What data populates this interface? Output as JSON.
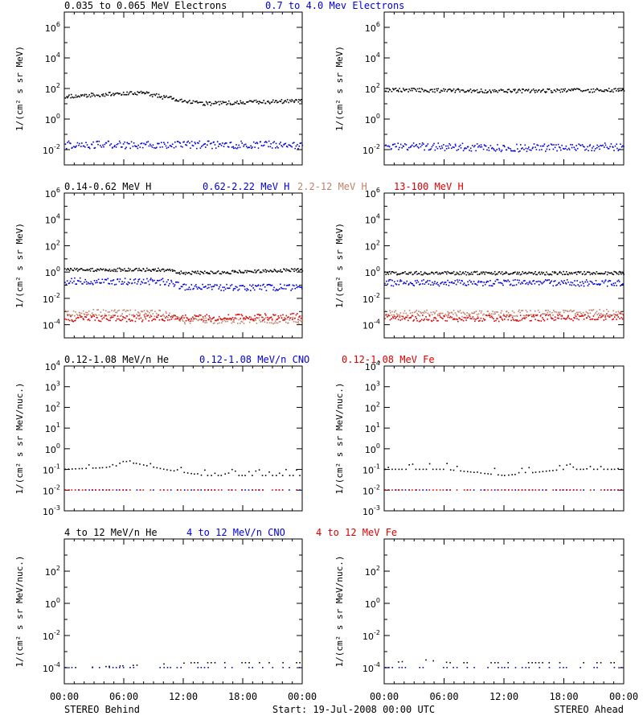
{
  "footer": {
    "left": "STEREO Behind",
    "center": "Start: 19-Jul-2008 00:00 UTC",
    "right": "STEREO Ahead"
  },
  "x_ticks": [
    "00:00",
    "06:00",
    "12:00",
    "18:00",
    "00:00"
  ],
  "colors": {
    "black": "#000000",
    "blue": "#0000dd",
    "tan": "#c0806a",
    "red": "#dd0000"
  },
  "chart_data": [
    {
      "type": "scatter",
      "row": 0,
      "titles": [
        {
          "text": "0.035 to 0.065 MeV Electrons",
          "color": "#000000"
        },
        {
          "text": "0.7 to 4.0 Mev Electrons",
          "color": "#0000dd"
        }
      ],
      "ylabel": "1/(cm² s sr MeV)",
      "yscale": "log",
      "ylim_exp": [
        -3,
        7
      ],
      "ytick_exps": [
        -2,
        0,
        2,
        4,
        6
      ],
      "xlim_hours": [
        0,
        24
      ],
      "panels": [
        {
          "name": "STEREO Behind",
          "series": [
            {
              "color": "black",
              "points": [
                [
                  0,
                  30
                ],
                [
                  4,
                  40
                ],
                [
                  8,
                  50
                ],
                [
                  10,
                  25
                ],
                [
                  12,
                  15
                ],
                [
                  14,
                  10
                ],
                [
                  18,
                  12
                ],
                [
                  24,
                  15
                ]
              ]
            },
            {
              "color": "blue",
              "points": [
                [
                  0,
                  0.02
                ],
                [
                  6,
                  0.02
                ],
                [
                  12,
                  0.02
                ],
                [
                  18,
                  0.02
                ],
                [
                  24,
                  0.02
                ]
              ]
            }
          ]
        },
        {
          "name": "STEREO Ahead",
          "series": [
            {
              "color": "black",
              "points": [
                [
                  0,
                  80
                ],
                [
                  6,
                  70
                ],
                [
                  12,
                  65
                ],
                [
                  18,
                  70
                ],
                [
                  24,
                  75
                ]
              ]
            },
            {
              "color": "blue",
              "points": [
                [
                  0,
                  0.015
                ],
                [
                  6,
                  0.015
                ],
                [
                  12,
                  0.012
                ],
                [
                  18,
                  0.014
                ],
                [
                  24,
                  0.015
                ]
              ]
            }
          ]
        }
      ]
    },
    {
      "type": "scatter",
      "row": 1,
      "titles": [
        {
          "text": "0.14-0.62 MeV H",
          "color": "#000000"
        },
        {
          "text": "0.62-2.22 MeV H",
          "color": "#0000dd"
        },
        {
          "text": "2.2-12 MeV H",
          "color": "#c0806a"
        },
        {
          "text": "13-100 MeV H",
          "color": "#dd0000"
        }
      ],
      "ylabel": "1/(cm² s sr MeV)",
      "yscale": "log",
      "ylim_exp": [
        -5,
        6
      ],
      "ytick_exps": [
        -4,
        -2,
        0,
        2,
        4,
        6
      ],
      "xlim_hours": [
        0,
        24
      ],
      "panels": [
        {
          "name": "STEREO Behind",
          "series": [
            {
              "color": "black",
              "points": [
                [
                  0,
                  1.5
                ],
                [
                  10,
                  1.4
                ],
                [
                  12,
                  0.8
                ],
                [
                  18,
                  1.0
                ],
                [
                  24,
                  1.5
                ]
              ]
            },
            {
              "color": "blue",
              "points": [
                [
                  0,
                  0.2
                ],
                [
                  10,
                  0.18
                ],
                [
                  12,
                  0.07
                ],
                [
                  18,
                  0.06
                ],
                [
                  24,
                  0.07
                ]
              ]
            },
            {
              "color": "tan",
              "points": [
                [
                  0,
                  0.0008
                ],
                [
                  10,
                  0.0007
                ],
                [
                  12,
                  0.0002
                ],
                [
                  24,
                  0.0002
                ]
              ]
            },
            {
              "color": "red",
              "points": [
                [
                  0,
                  0.0003
                ],
                [
                  10,
                  0.0003
                ],
                [
                  12,
                  0.0003
                ],
                [
                  24,
                  0.0004
                ]
              ]
            }
          ]
        },
        {
          "name": "STEREO Ahead",
          "series": [
            {
              "color": "black",
              "points": [
                [
                  0,
                  0.8
                ],
                [
                  12,
                  0.8
                ],
                [
                  24,
                  0.8
                ]
              ]
            },
            {
              "color": "blue",
              "points": [
                [
                  0,
                  0.15
                ],
                [
                  12,
                  0.15
                ],
                [
                  24,
                  0.14
                ]
              ]
            },
            {
              "color": "tan",
              "points": [
                [
                  0,
                  0.0007
                ],
                [
                  12,
                  0.0007
                ],
                [
                  24,
                  0.0008
                ]
              ]
            },
            {
              "color": "red",
              "points": [
                [
                  0,
                  0.0003
                ],
                [
                  12,
                  0.0003
                ],
                [
                  24,
                  0.0004
                ]
              ]
            }
          ]
        }
      ]
    },
    {
      "type": "scatter",
      "row": 2,
      "titles": [
        {
          "text": "0.12-1.08 MeV/n He",
          "color": "#000000"
        },
        {
          "text": "0.12-1.08 MeV/n CNO",
          "color": "#0000dd"
        },
        {
          "text": "0.12-1.08 MeV Fe",
          "color": "#dd0000"
        }
      ],
      "ylabel": "1/(cm² s sr MeV/nuc.)",
      "yscale": "log",
      "ylim_exp": [
        -3,
        4
      ],
      "ytick_exps": [
        -3,
        -2,
        -1,
        0,
        1,
        2,
        3,
        4
      ],
      "xlim_hours": [
        0,
        24
      ],
      "panels": [
        {
          "name": "STEREO Behind",
          "series": [
            {
              "color": "black",
              "points": [
                [
                  0,
                  0.1
                ],
                [
                  4,
                  0.12
                ],
                [
                  7,
                  0.2
                ],
                [
                  10,
                  0.1
                ],
                [
                  14,
                  0.05
                ],
                [
                  24,
                  0.05
                ]
              ]
            },
            {
              "color": "blue",
              "points": [
                [
                  0,
                  0.01
                ],
                [
                  10,
                  0.01
                ],
                [
                  24,
                  0.01
                ]
              ]
            },
            {
              "color": "red",
              "points": [
                [
                  9,
                  0.01
                ],
                [
                  20,
                  0.01
                ]
              ]
            }
          ]
        },
        {
          "name": "STEREO Ahead",
          "series": [
            {
              "color": "black",
              "points": [
                [
                  0,
                  0.1
                ],
                [
                  6,
                  0.1
                ],
                [
                  12,
                  0.05
                ],
                [
                  18,
                  0.1
                ],
                [
                  24,
                  0.1
                ]
              ]
            },
            {
              "color": "blue",
              "points": [
                [
                  0,
                  0.01
                ],
                [
                  12,
                  0.01
                ],
                [
                  24,
                  0.01
                ]
              ]
            },
            {
              "color": "red",
              "points": [
                [
                  0,
                  0.01
                ],
                [
                  8,
                  0.01
                ],
                [
                  16,
                  0.01
                ]
              ]
            }
          ]
        }
      ]
    },
    {
      "type": "scatter",
      "row": 3,
      "titles": [
        {
          "text": "4 to 12 MeV/n He",
          "color": "#000000"
        },
        {
          "text": "4 to 12 MeV/n CNO",
          "color": "#0000dd"
        },
        {
          "text": "4 to 12 MeV Fe",
          "color": "#dd0000"
        }
      ],
      "ylabel": "1/(cm² s sr MeV/nuc.)",
      "yscale": "log",
      "ylim_exp": [
        -5,
        4
      ],
      "ytick_exps": [
        -4,
        -2,
        0,
        2
      ],
      "xlim_hours": [
        0,
        24
      ],
      "panels": [
        {
          "name": "STEREO Behind",
          "series": [
            {
              "color": "black",
              "points": [
                [
                  2,
                  0.0001
                ],
                [
                  13,
                  0.0002
                ],
                [
                  20,
                  0.0002
                ]
              ]
            },
            {
              "color": "blue",
              "points": [
                [
                  1,
                  0.0001
                ],
                [
                  8,
                  0.0001
                ],
                [
                  16,
                  0.0001
                ],
                [
                  22,
                  0.0001
                ]
              ]
            }
          ]
        },
        {
          "name": "STEREO Ahead",
          "series": [
            {
              "color": "black",
              "points": [
                [
                  0.5,
                  0.0002
                ],
                [
                  4,
                  0.0003
                ],
                [
                  6.5,
                  0.0002
                ],
                [
                  11.5,
                  0.0002
                ],
                [
                  14,
                  0.0002
                ]
              ]
            },
            {
              "color": "blue",
              "points": [
                [
                  2,
                  0.0001
                ],
                [
                  9,
                  0.0001
                ],
                [
                  17,
                  0.0001
                ],
                [
                  21,
                  0.0001
                ]
              ]
            }
          ]
        }
      ]
    }
  ]
}
